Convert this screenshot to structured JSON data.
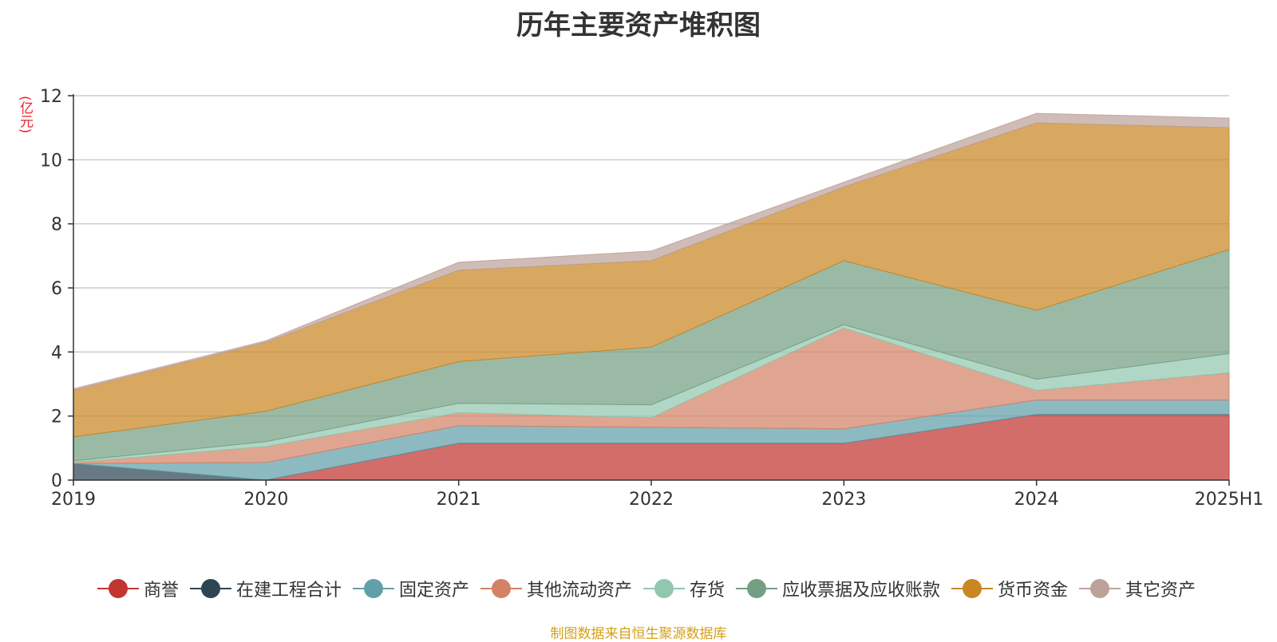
{
  "chart_data": {
    "type": "area",
    "title": "历年主要资产堆积图",
    "ylabel": "(亿元)",
    "xlabel": "",
    "categories": [
      "2019",
      "2020",
      "2021",
      "2022",
      "2023",
      "2024",
      "2025H1"
    ],
    "ylim": [
      0,
      12
    ],
    "yticks": [
      0,
      2,
      4,
      6,
      8,
      10,
      12
    ],
    "stacked": true,
    "grid": true,
    "legend_position": "bottom",
    "series": [
      {
        "name": "商誉",
        "color": "#c23531",
        "values": [
          0,
          0,
          1.15,
          1.15,
          1.15,
          2.05,
          2.05
        ]
      },
      {
        "name": "在建工程合计",
        "color": "#2f4554",
        "values": [
          0.52,
          0,
          0,
          0,
          0,
          0,
          0
        ]
      },
      {
        "name": "固定资产",
        "color": "#61a0a8",
        "values": [
          0,
          0.55,
          0.55,
          0.5,
          0.45,
          0.45,
          0.45
        ]
      },
      {
        "name": "其他流动资产",
        "color": "#d48265",
        "values": [
          0.03,
          0.5,
          0.4,
          0.3,
          3.15,
          0.3,
          0.85
        ]
      },
      {
        "name": "存货",
        "color": "#91c7ae",
        "values": [
          0.05,
          0.15,
          0.3,
          0.4,
          0.1,
          0.35,
          0.6
        ]
      },
      {
        "name": "应收票据及应收账款",
        "color": "#749f83",
        "values": [
          0.75,
          0.95,
          1.3,
          1.8,
          2.0,
          2.15,
          3.25
        ]
      },
      {
        "name": "货币资金",
        "color": "#ca8622",
        "values": [
          1.45,
          2.15,
          2.85,
          2.7,
          2.3,
          5.85,
          3.8
        ]
      },
      {
        "name": "其它资产",
        "color": "#bda29a",
        "values": [
          0.05,
          0.05,
          0.25,
          0.3,
          0.15,
          0.3,
          0.3
        ]
      }
    ]
  },
  "legend": {
    "items": [
      {
        "label": "商誉",
        "color": "#c23531"
      },
      {
        "label": "在建工程合计",
        "color": "#2f4554"
      },
      {
        "label": "固定资产",
        "color": "#61a0a8"
      },
      {
        "label": "其他流动资产",
        "color": "#d48265"
      },
      {
        "label": "存货",
        "color": "#91c7ae"
      },
      {
        "label": "应收票据及应收账款",
        "color": "#749f83"
      },
      {
        "label": "货币资金",
        "color": "#ca8622"
      },
      {
        "label": "其它资产",
        "color": "#bda29a"
      }
    ]
  },
  "source": "制图数据来自恒生聚源数据库"
}
